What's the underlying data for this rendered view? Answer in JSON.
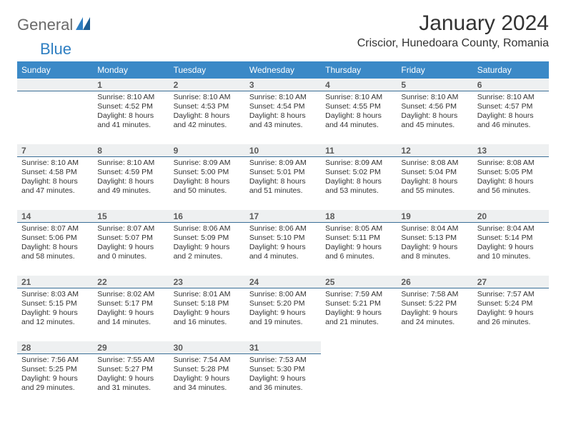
{
  "logo": {
    "general": "General",
    "blue": "Blue"
  },
  "title": "January 2024",
  "location": "Criscior, Hunedoara County, Romania",
  "colors": {
    "header_bg": "#3b89c7",
    "header_text": "#ffffff",
    "daynum_bg": "#eef0f1",
    "daynum_border": "#3b6f97",
    "body_text": "#333333",
    "logo_gray": "#6a6a6a",
    "logo_blue": "#2f7fc2"
  },
  "weekdays": [
    "Sunday",
    "Monday",
    "Tuesday",
    "Wednesday",
    "Thursday",
    "Friday",
    "Saturday"
  ],
  "weeks": [
    [
      null,
      {
        "n": "1",
        "sr": "8:10 AM",
        "ss": "4:52 PM",
        "dl": "8 hours and 41 minutes."
      },
      {
        "n": "2",
        "sr": "8:10 AM",
        "ss": "4:53 PM",
        "dl": "8 hours and 42 minutes."
      },
      {
        "n": "3",
        "sr": "8:10 AM",
        "ss": "4:54 PM",
        "dl": "8 hours and 43 minutes."
      },
      {
        "n": "4",
        "sr": "8:10 AM",
        "ss": "4:55 PM",
        "dl": "8 hours and 44 minutes."
      },
      {
        "n": "5",
        "sr": "8:10 AM",
        "ss": "4:56 PM",
        "dl": "8 hours and 45 minutes."
      },
      {
        "n": "6",
        "sr": "8:10 AM",
        "ss": "4:57 PM",
        "dl": "8 hours and 46 minutes."
      }
    ],
    [
      {
        "n": "7",
        "sr": "8:10 AM",
        "ss": "4:58 PM",
        "dl": "8 hours and 47 minutes."
      },
      {
        "n": "8",
        "sr": "8:10 AM",
        "ss": "4:59 PM",
        "dl": "8 hours and 49 minutes."
      },
      {
        "n": "9",
        "sr": "8:09 AM",
        "ss": "5:00 PM",
        "dl": "8 hours and 50 minutes."
      },
      {
        "n": "10",
        "sr": "8:09 AM",
        "ss": "5:01 PM",
        "dl": "8 hours and 51 minutes."
      },
      {
        "n": "11",
        "sr": "8:09 AM",
        "ss": "5:02 PM",
        "dl": "8 hours and 53 minutes."
      },
      {
        "n": "12",
        "sr": "8:08 AM",
        "ss": "5:04 PM",
        "dl": "8 hours and 55 minutes."
      },
      {
        "n": "13",
        "sr": "8:08 AM",
        "ss": "5:05 PM",
        "dl": "8 hours and 56 minutes."
      }
    ],
    [
      {
        "n": "14",
        "sr": "8:07 AM",
        "ss": "5:06 PM",
        "dl": "8 hours and 58 minutes."
      },
      {
        "n": "15",
        "sr": "8:07 AM",
        "ss": "5:07 PM",
        "dl": "9 hours and 0 minutes."
      },
      {
        "n": "16",
        "sr": "8:06 AM",
        "ss": "5:09 PM",
        "dl": "9 hours and 2 minutes."
      },
      {
        "n": "17",
        "sr": "8:06 AM",
        "ss": "5:10 PM",
        "dl": "9 hours and 4 minutes."
      },
      {
        "n": "18",
        "sr": "8:05 AM",
        "ss": "5:11 PM",
        "dl": "9 hours and 6 minutes."
      },
      {
        "n": "19",
        "sr": "8:04 AM",
        "ss": "5:13 PM",
        "dl": "9 hours and 8 minutes."
      },
      {
        "n": "20",
        "sr": "8:04 AM",
        "ss": "5:14 PM",
        "dl": "9 hours and 10 minutes."
      }
    ],
    [
      {
        "n": "21",
        "sr": "8:03 AM",
        "ss": "5:15 PM",
        "dl": "9 hours and 12 minutes."
      },
      {
        "n": "22",
        "sr": "8:02 AM",
        "ss": "5:17 PM",
        "dl": "9 hours and 14 minutes."
      },
      {
        "n": "23",
        "sr": "8:01 AM",
        "ss": "5:18 PM",
        "dl": "9 hours and 16 minutes."
      },
      {
        "n": "24",
        "sr": "8:00 AM",
        "ss": "5:20 PM",
        "dl": "9 hours and 19 minutes."
      },
      {
        "n": "25",
        "sr": "7:59 AM",
        "ss": "5:21 PM",
        "dl": "9 hours and 21 minutes."
      },
      {
        "n": "26",
        "sr": "7:58 AM",
        "ss": "5:22 PM",
        "dl": "9 hours and 24 minutes."
      },
      {
        "n": "27",
        "sr": "7:57 AM",
        "ss": "5:24 PM",
        "dl": "9 hours and 26 minutes."
      }
    ],
    [
      {
        "n": "28",
        "sr": "7:56 AM",
        "ss": "5:25 PM",
        "dl": "9 hours and 29 minutes."
      },
      {
        "n": "29",
        "sr": "7:55 AM",
        "ss": "5:27 PM",
        "dl": "9 hours and 31 minutes."
      },
      {
        "n": "30",
        "sr": "7:54 AM",
        "ss": "5:28 PM",
        "dl": "9 hours and 34 minutes."
      },
      {
        "n": "31",
        "sr": "7:53 AM",
        "ss": "5:30 PM",
        "dl": "9 hours and 36 minutes."
      },
      null,
      null,
      null
    ]
  ],
  "labels": {
    "sunrise": "Sunrise: ",
    "sunset": "Sunset: ",
    "daylight": "Daylight: "
  }
}
